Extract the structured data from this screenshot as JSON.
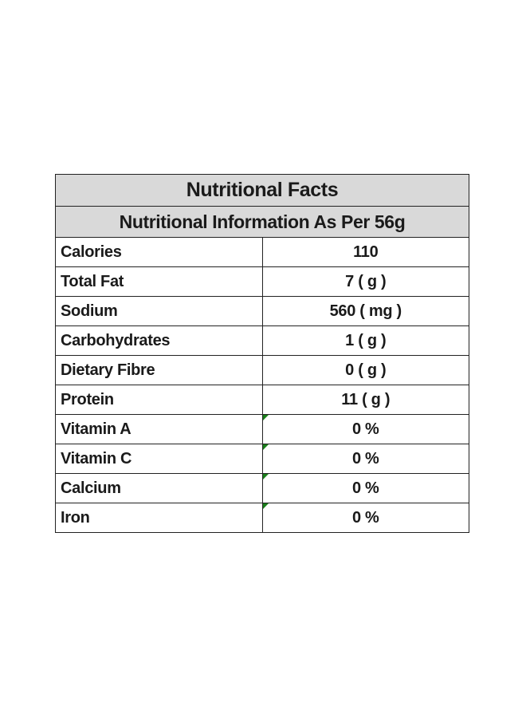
{
  "title": "Nutritional Facts",
  "subtitle": "Nutritional Information As Per 56g",
  "rows": [
    {
      "name": "Calories",
      "value": "110",
      "marker": false
    },
    {
      "name": "Total Fat",
      "value": "7 ( g )",
      "marker": false
    },
    {
      "name": "Sodium",
      "value": "560 ( mg )",
      "marker": false
    },
    {
      "name": "Carbohydrates",
      "value": "1 ( g )",
      "marker": false
    },
    {
      "name": "Dietary Fibre",
      "value": "0 ( g )",
      "marker": false
    },
    {
      "name": "Protein",
      "value": "11 ( g )",
      "marker": false
    },
    {
      "name": "Vitamin A",
      "value": "0 %",
      "marker": true
    },
    {
      "name": "Vitamin C",
      "value": "0 %",
      "marker": true
    },
    {
      "name": "Calcium",
      "value": "0 %",
      "marker": true
    },
    {
      "name": "Iron",
      "value": "0 %",
      "marker": true
    }
  ],
  "colors": {
    "header_background": "#d9d9d9",
    "border": "#222222",
    "cell_marker": "#1a7f1a"
  }
}
